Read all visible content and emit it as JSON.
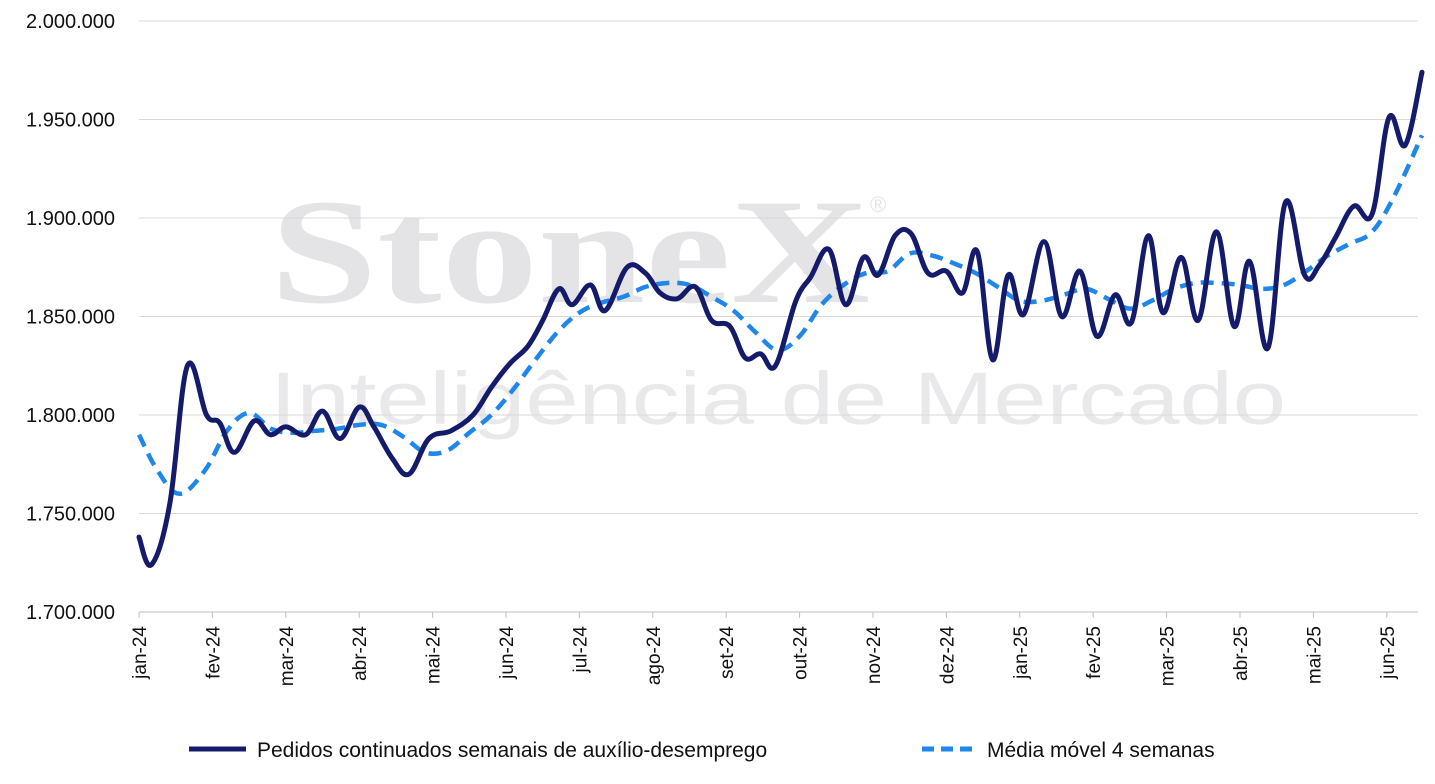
{
  "watermark": {
    "brand": "StoneX",
    "registered": "®",
    "tagline": "Inteligência de Mercado"
  },
  "colors": {
    "series1": "#151b6b",
    "series2": "#1f86ea",
    "grid": "#d9d9d9",
    "axis": "#bfbfbf"
  },
  "chart_data": {
    "type": "line",
    "title": "",
    "xlabel": "",
    "ylabel": "",
    "ylim": [
      1700000,
      2000000
    ],
    "yticks": [
      1700000,
      1750000,
      1800000,
      1850000,
      1900000,
      1950000,
      2000000
    ],
    "ytick_labels": [
      "1.700.000",
      "1.750.000",
      "1.800.000",
      "1.850.000",
      "1.900.000",
      "1.950.000",
      "2.000.000"
    ],
    "xtick_labels": [
      "jan-24",
      "fev-24",
      "mar-24",
      "abr-24",
      "mai-24",
      "jun-24",
      "jul-24",
      "ago-24",
      "set-24",
      "out-24",
      "nov-24",
      "dez-24",
      "jan-25",
      "fev-25",
      "mar-25",
      "abr-25",
      "mai-25",
      "jun-25"
    ],
    "grid": true,
    "legend_position": "bottom",
    "x_unit": "month index (0 = jan-24)",
    "series": [
      {
        "name": "Pedidos continuados semanais de auxílio-desemprego",
        "style": "solid",
        "points": [
          [
            0.0,
            1738000
          ],
          [
            0.17,
            1724000
          ],
          [
            0.42,
            1755000
          ],
          [
            0.66,
            1825000
          ],
          [
            0.92,
            1800000
          ],
          [
            1.1,
            1796000
          ],
          [
            1.3,
            1781000
          ],
          [
            1.57,
            1797000
          ],
          [
            1.79,
            1790000
          ],
          [
            2.0,
            1794000
          ],
          [
            2.27,
            1790000
          ],
          [
            2.5,
            1802000
          ],
          [
            2.74,
            1788000
          ],
          [
            3.0,
            1804000
          ],
          [
            3.2,
            1794000
          ],
          [
            3.45,
            1778000
          ],
          [
            3.68,
            1770000
          ],
          [
            3.95,
            1788000
          ],
          [
            4.25,
            1792000
          ],
          [
            4.55,
            1800000
          ],
          [
            4.8,
            1814000
          ],
          [
            5.05,
            1826000
          ],
          [
            5.3,
            1835000
          ],
          [
            5.5,
            1848000
          ],
          [
            5.72,
            1864000
          ],
          [
            5.9,
            1856000
          ],
          [
            6.15,
            1866000
          ],
          [
            6.35,
            1853000
          ],
          [
            6.65,
            1875000
          ],
          [
            6.9,
            1872000
          ],
          [
            7.1,
            1862000
          ],
          [
            7.33,
            1859000
          ],
          [
            7.58,
            1865000
          ],
          [
            7.8,
            1848000
          ],
          [
            8.05,
            1845000
          ],
          [
            8.26,
            1829000
          ],
          [
            8.47,
            1831000
          ],
          [
            8.67,
            1825000
          ],
          [
            8.95,
            1858000
          ],
          [
            9.15,
            1870000
          ],
          [
            9.4,
            1884000
          ],
          [
            9.63,
            1856000
          ],
          [
            9.87,
            1880000
          ],
          [
            10.07,
            1871000
          ],
          [
            10.3,
            1891000
          ],
          [
            10.52,
            1892000
          ],
          [
            10.75,
            1872000
          ],
          [
            11.0,
            1873000
          ],
          [
            11.22,
            1862000
          ],
          [
            11.42,
            1883000
          ],
          [
            11.63,
            1828000
          ],
          [
            11.84,
            1871000
          ],
          [
            12.05,
            1851000
          ],
          [
            12.33,
            1888000
          ],
          [
            12.57,
            1850000
          ],
          [
            12.82,
            1873000
          ],
          [
            13.05,
            1840000
          ],
          [
            13.3,
            1861000
          ],
          [
            13.52,
            1847000
          ],
          [
            13.75,
            1891000
          ],
          [
            13.95,
            1852000
          ],
          [
            14.2,
            1880000
          ],
          [
            14.43,
            1848000
          ],
          [
            14.68,
            1893000
          ],
          [
            14.92,
            1845000
          ],
          [
            15.13,
            1878000
          ],
          [
            15.38,
            1834000
          ],
          [
            15.62,
            1908000
          ],
          [
            15.88,
            1871000
          ],
          [
            16.08,
            1876000
          ],
          [
            16.3,
            1890000
          ],
          [
            16.55,
            1906000
          ],
          [
            16.8,
            1902000
          ],
          [
            17.03,
            1951000
          ],
          [
            17.25,
            1937000
          ],
          [
            17.48,
            1974000
          ]
        ]
      },
      {
        "name": "Média móvel 4 semanas",
        "style": "dashed",
        "points": [
          [
            0.0,
            1790000
          ],
          [
            0.25,
            1772000
          ],
          [
            0.55,
            1760000
          ],
          [
            0.9,
            1772000
          ],
          [
            1.2,
            1792000
          ],
          [
            1.5,
            1801000
          ],
          [
            1.8,
            1793000
          ],
          [
            2.1,
            1791000
          ],
          [
            2.4,
            1792000
          ],
          [
            2.7,
            1793000
          ],
          [
            3.0,
            1795000
          ],
          [
            3.3,
            1795000
          ],
          [
            3.6,
            1789000
          ],
          [
            3.9,
            1781000
          ],
          [
            4.2,
            1782000
          ],
          [
            4.5,
            1791000
          ],
          [
            4.8,
            1800000
          ],
          [
            5.1,
            1813000
          ],
          [
            5.4,
            1828000
          ],
          [
            5.7,
            1842000
          ],
          [
            6.0,
            1852000
          ],
          [
            6.3,
            1857000
          ],
          [
            6.6,
            1860000
          ],
          [
            6.9,
            1865000
          ],
          [
            7.2,
            1867000
          ],
          [
            7.5,
            1866000
          ],
          [
            7.8,
            1860000
          ],
          [
            8.1,
            1853000
          ],
          [
            8.4,
            1842000
          ],
          [
            8.7,
            1833000
          ],
          [
            9.0,
            1840000
          ],
          [
            9.3,
            1856000
          ],
          [
            9.6,
            1866000
          ],
          [
            9.9,
            1872000
          ],
          [
            10.2,
            1873000
          ],
          [
            10.5,
            1882000
          ],
          [
            10.8,
            1881000
          ],
          [
            11.1,
            1877000
          ],
          [
            11.4,
            1872000
          ],
          [
            11.7,
            1865000
          ],
          [
            12.0,
            1858000
          ],
          [
            12.3,
            1858000
          ],
          [
            12.6,
            1861000
          ],
          [
            12.9,
            1864000
          ],
          [
            13.2,
            1859000
          ],
          [
            13.5,
            1854000
          ],
          [
            13.8,
            1858000
          ],
          [
            14.1,
            1864000
          ],
          [
            14.4,
            1867000
          ],
          [
            14.7,
            1867000
          ],
          [
            15.0,
            1866000
          ],
          [
            15.3,
            1864000
          ],
          [
            15.6,
            1866000
          ],
          [
            15.9,
            1873000
          ],
          [
            16.2,
            1881000
          ],
          [
            16.5,
            1887000
          ],
          [
            16.8,
            1893000
          ],
          [
            17.1,
            1911000
          ],
          [
            17.48,
            1942000
          ]
        ]
      }
    ]
  }
}
